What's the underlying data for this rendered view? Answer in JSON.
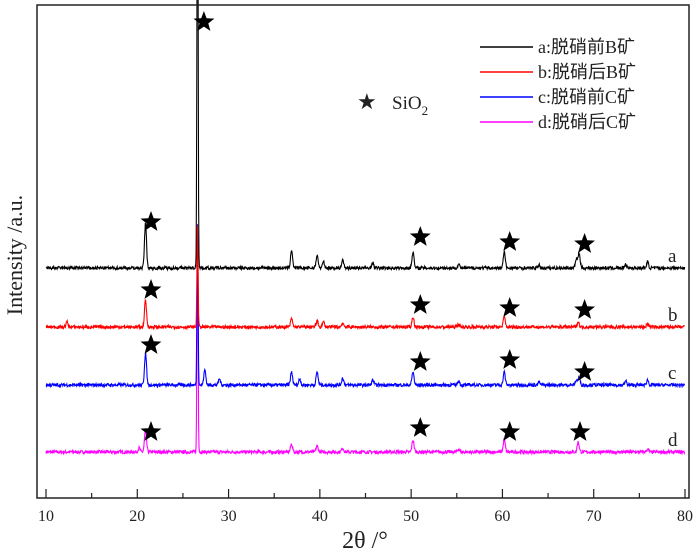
{
  "chart_data": {
    "type": "line",
    "xlabel": "2θ /°",
    "ylabel": "Intensity /a.u.",
    "xlim": [
      10,
      80
    ],
    "ylim": [
      0,
      493
    ],
    "xticks": [
      10,
      20,
      30,
      40,
      50,
      60,
      70,
      80
    ],
    "yticks_shown": false,
    "grid": false,
    "legend_placement": "top-right",
    "marker_legend": {
      "symbol": "★",
      "label": "SiO",
      "subscript": "2"
    },
    "series": [
      {
        "name": "a:脱硝前B矿",
        "tag": "a",
        "color": "#000000",
        "baseline": 230,
        "peaks": [
          [
            20.9,
            45
          ],
          [
            26.6,
            478
          ],
          [
            36.9,
            18
          ],
          [
            39.7,
            13
          ],
          [
            40.4,
            6
          ],
          [
            42.5,
            8
          ],
          [
            45.8,
            5
          ],
          [
            50.2,
            16
          ],
          [
            55.2,
            4
          ],
          [
            60.2,
            16
          ],
          [
            64.0,
            3
          ],
          [
            68.1,
            9
          ],
          [
            68.4,
            15
          ],
          [
            73.5,
            4
          ],
          [
            75.9,
            6
          ]
        ],
        "stars": [
          [
            21.5,
            276
          ],
          [
            27.3,
            476
          ],
          [
            51.0,
            261
          ],
          [
            60.8,
            256
          ],
          [
            69.0,
            254
          ]
        ]
      },
      {
        "name": "b:脱硝后B矿",
        "tag": "b",
        "color": "#ff0000",
        "baseline": 171,
        "peaks": [
          [
            12.3,
            5
          ],
          [
            20.9,
            27
          ],
          [
            26.6,
            100
          ],
          [
            36.9,
            8
          ],
          [
            39.7,
            6
          ],
          [
            40.4,
            5
          ],
          [
            42.5,
            4
          ],
          [
            50.2,
            10
          ],
          [
            55.2,
            3
          ],
          [
            60.2,
            10
          ],
          [
            68.3,
            5
          ],
          [
            75.9,
            3
          ]
        ],
        "stars": [
          [
            21.5,
            208
          ],
          [
            51.0,
            193
          ],
          [
            60.8,
            190
          ],
          [
            69.0,
            188
          ]
        ]
      },
      {
        "name": "c:脱硝前C矿",
        "tag": "c",
        "color": "#0000ff",
        "baseline": 113,
        "peaks": [
          [
            20.9,
            32
          ],
          [
            26.6,
            160
          ],
          [
            27.4,
            15
          ],
          [
            29.0,
            6
          ],
          [
            36.9,
            13
          ],
          [
            37.8,
            6
          ],
          [
            39.7,
            13
          ],
          [
            42.5,
            7
          ],
          [
            45.8,
            5
          ],
          [
            50.2,
            13
          ],
          [
            55.2,
            4
          ],
          [
            60.2,
            13
          ],
          [
            64.0,
            3
          ],
          [
            68.1,
            5
          ],
          [
            68.4,
            7
          ],
          [
            73.5,
            4
          ],
          [
            75.9,
            5
          ]
        ],
        "stars": [
          [
            21.5,
            153
          ],
          [
            51.0,
            136
          ],
          [
            60.8,
            138
          ],
          [
            69.0,
            126
          ]
        ]
      },
      {
        "name": "d:脱硝后C矿",
        "tag": "d",
        "color": "#ff00ff",
        "baseline": 46,
        "peaks": [
          [
            20.2,
            4
          ],
          [
            20.9,
            22
          ],
          [
            26.6,
            220
          ],
          [
            36.9,
            8
          ],
          [
            39.7,
            6
          ],
          [
            42.5,
            4
          ],
          [
            50.2,
            12
          ],
          [
            55.2,
            3
          ],
          [
            60.2,
            12
          ],
          [
            68.3,
            10
          ],
          [
            75.9,
            3
          ]
        ],
        "stars": [
          [
            21.5,
            66
          ],
          [
            51.0,
            70
          ],
          [
            60.8,
            66
          ],
          [
            68.5,
            66
          ]
        ]
      }
    ]
  }
}
